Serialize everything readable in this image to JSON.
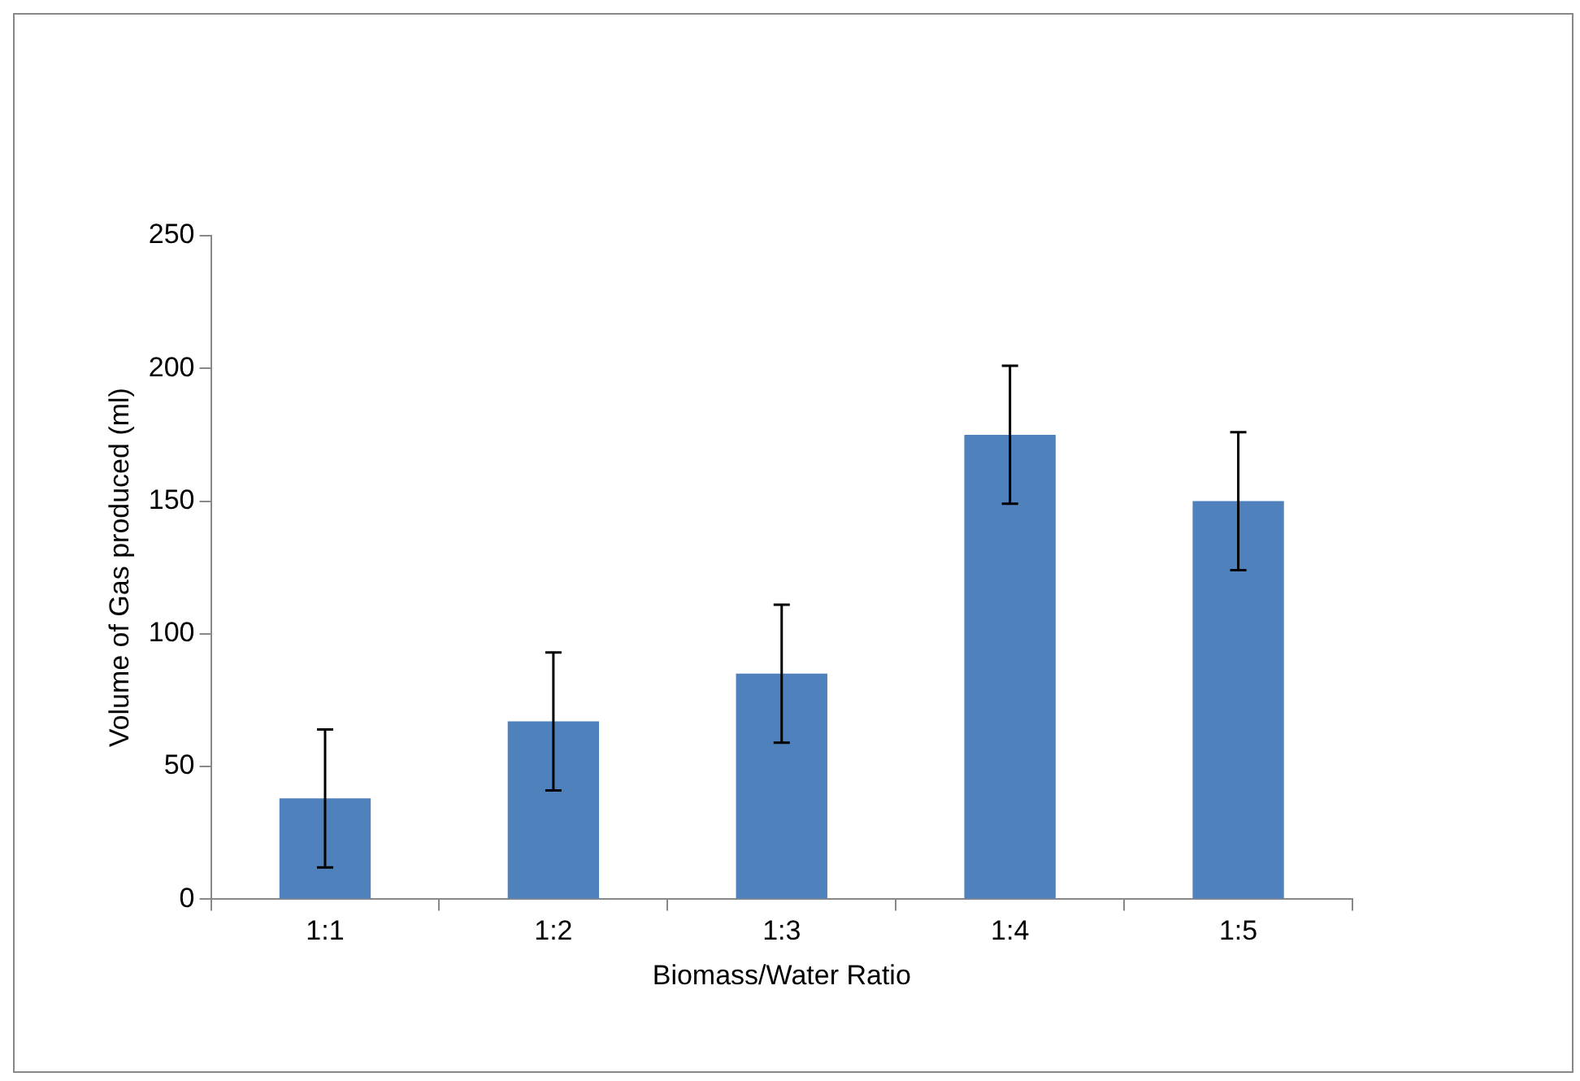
{
  "chart_data": {
    "type": "bar",
    "xlabel": "Biomass/Water Ratio",
    "ylabel": "Volume of Gas produced (ml)",
    "categories": [
      "1:1",
      "1:2",
      "1:3",
      "1:4",
      "1:5"
    ],
    "values": [
      38,
      67,
      85,
      175,
      150
    ],
    "errors": [
      26,
      26,
      26,
      26,
      26
    ],
    "color": "#4f81bd",
    "ylim": [
      0,
      250
    ],
    "yticks": [
      0,
      50,
      100,
      150,
      200,
      250
    ]
  }
}
